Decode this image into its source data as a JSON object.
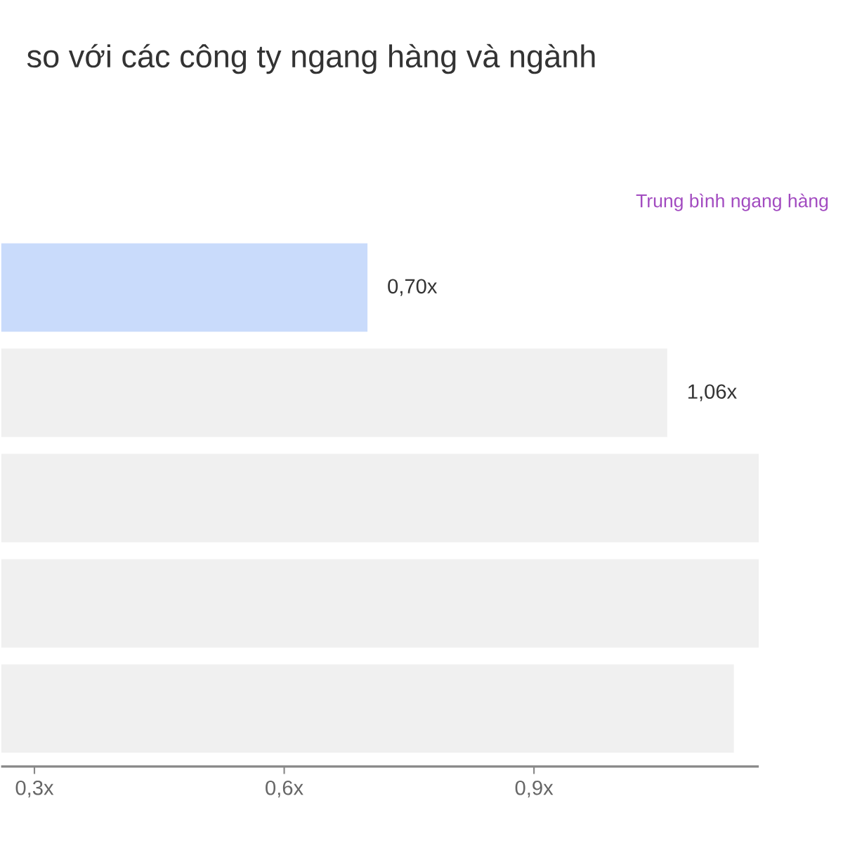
{
  "chart_data": {
    "type": "bar",
    "orientation": "horizontal",
    "title": "so với các công ty ngang hàng và ngành",
    "annotations": [
      "Trung bình ngang hàng"
    ],
    "categories": [
      null,
      null,
      null,
      null,
      null
    ],
    "values": [
      0.7,
      1.06,
      1.17,
      1.17,
      1.14
    ],
    "colors": [
      "#c9dbfb",
      "#f0f0f0",
      "#f0f0f0",
      "#f0f0f0",
      "#f0f0f0"
    ],
    "value_labels": [
      "0,70x",
      "1,06x",
      null,
      null,
      null
    ],
    "xlim": [
      0.26,
      1.17
    ],
    "xticks": [
      {
        "value": 0.3,
        "label": "0,3x"
      },
      {
        "value": 0.6,
        "label": "0,6x"
      },
      {
        "value": 0.9,
        "label": "0,9x"
      }
    ]
  }
}
